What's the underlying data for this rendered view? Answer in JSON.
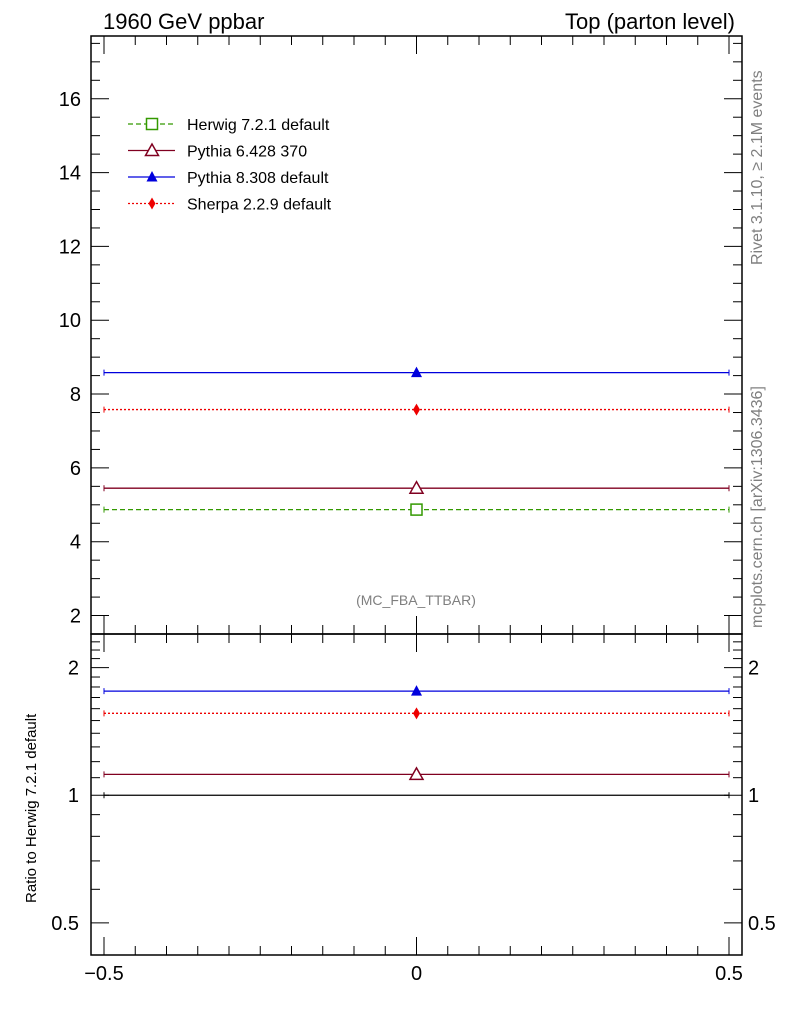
{
  "header": {
    "left": "1960 GeV ppbar",
    "right": "Top (parton level)"
  },
  "side_labels": {
    "rivet": "Rivet 3.1.10, ≥ 2.1M events",
    "mcplots": "mcplots.cern.ch [arXiv:1306.3436]"
  },
  "watermark": "(MC_FBA_TTBAR)",
  "chart_data": [
    {
      "type": "line",
      "panel": "main",
      "x_range": [
        -0.5,
        0.5
      ],
      "ylim": [
        1.5,
        17.7
      ],
      "yticks": [
        2,
        4,
        6,
        8,
        10,
        12,
        14,
        16
      ],
      "legend_position": "top-left",
      "series": [
        {
          "name": "Herwig 7.2.1 default",
          "x": [
            0
          ],
          "y": [
            4.87
          ],
          "color": "#339900",
          "line": "dashed",
          "marker": "open-square"
        },
        {
          "name": "Pythia 6.428 370",
          "x": [
            0
          ],
          "y": [
            5.45
          ],
          "color": "#800020",
          "line": "solid",
          "marker": "open-triangle"
        },
        {
          "name": "Pythia 8.308 default",
          "x": [
            0
          ],
          "y": [
            8.58
          ],
          "color": "#0000dd",
          "line": "solid",
          "marker": "filled-triangle"
        },
        {
          "name": "Sherpa 2.2.9 default",
          "x": [
            0
          ],
          "y": [
            7.58
          ],
          "color": "#ee0000",
          "line": "dotted",
          "marker": "filled-diamond"
        }
      ]
    },
    {
      "type": "line",
      "panel": "ratio",
      "ylabel": "Ratio to Herwig 7.2.1 default",
      "x_range": [
        -0.5,
        0.5
      ],
      "xticks": [
        "−0.5",
        "0",
        "0.5"
      ],
      "ylim": [
        0.42,
        2.4
      ],
      "ylog": true,
      "yticks": [
        "0.5",
        "1",
        "2"
      ],
      "series": [
        {
          "name": "Herwig 7.2.1 default",
          "x": [
            0
          ],
          "y": [
            1.0
          ],
          "color": "#000000",
          "line": "solid",
          "marker": "none"
        },
        {
          "name": "Pythia 6.428 370",
          "x": [
            0
          ],
          "y": [
            1.12
          ],
          "color": "#800020",
          "line": "solid",
          "marker": "open-triangle"
        },
        {
          "name": "Pythia 8.308 default",
          "x": [
            0
          ],
          "y": [
            1.76
          ],
          "color": "#0000dd",
          "line": "solid",
          "marker": "filled-triangle"
        },
        {
          "name": "Sherpa 2.2.9 default",
          "x": [
            0
          ],
          "y": [
            1.56
          ],
          "color": "#ee0000",
          "line": "dotted",
          "marker": "filled-diamond"
        }
      ]
    }
  ]
}
